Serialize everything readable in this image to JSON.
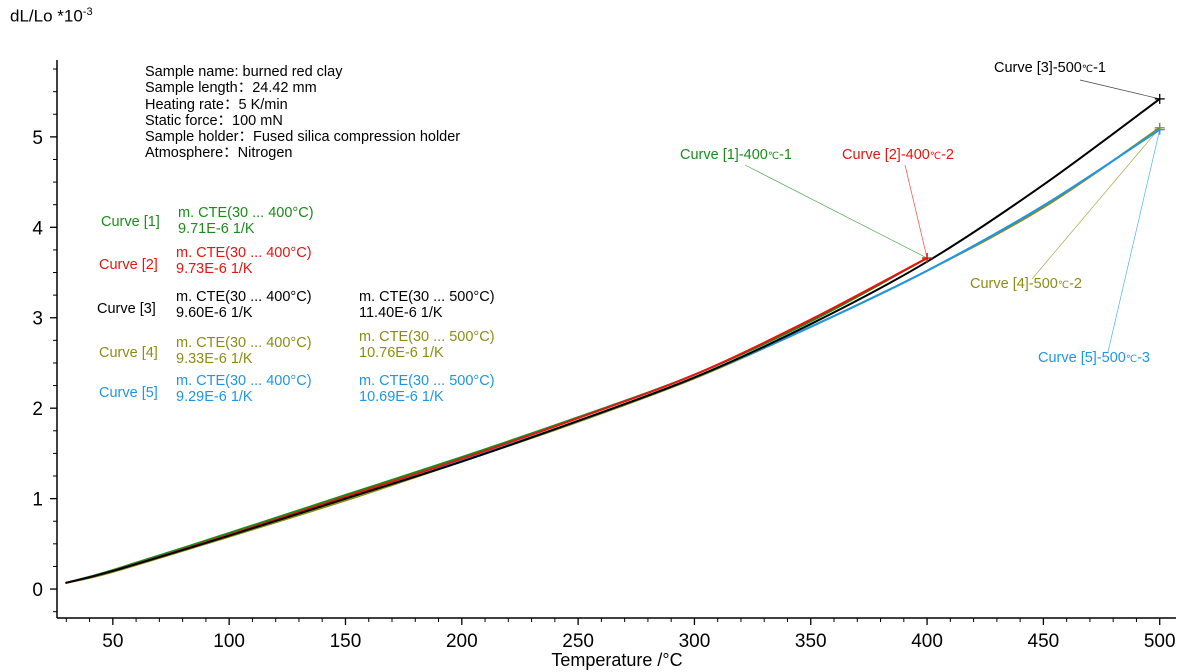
{
  "colors": {
    "curve1": "#1a8c1a",
    "curve2": "#e8140f",
    "curve3": "#000000",
    "curve4": "#8c8c14",
    "curve5": "#1e96e6",
    "axis": "#000000"
  },
  "info": {
    "sample_name": "Sample name: burned red clay",
    "sample_length": "Sample length：24.42 mm",
    "heating_rate": "Heating rate：5 K/min",
    "static_force": "Static force：100 mN",
    "sample_holder": "Sample holder：Fused silica compression holder",
    "atmosphere": "Atmosphere：Nitrogen"
  },
  "cte_table": [
    {
      "name": "Curve [1]",
      "a_label": "m. CTE(30 ... 400°C)",
      "a_value": "9.71E-6 1/K",
      "b_label": "",
      "b_value": ""
    },
    {
      "name": "Curve [2]",
      "a_label": "m. CTE(30 ... 400°C)",
      "a_value": "9.73E-6 1/K",
      "b_label": "",
      "b_value": ""
    },
    {
      "name": "Curve [3]",
      "a_label": "m. CTE(30 ... 400°C)",
      "a_value": "9.60E-6 1/K",
      "b_label": "m. CTE(30 ... 500°C)",
      "b_value": "11.40E-6 1/K"
    },
    {
      "name": "Curve [4]",
      "a_label": "m. CTE(30 ... 400°C)",
      "a_value": "9.33E-6 1/K",
      "b_label": "m. CTE(30 ... 500°C)",
      "b_value": "10.76E-6 1/K"
    },
    {
      "name": "Curve [5]",
      "a_label": "m. CTE(30 ... 400°C)",
      "a_value": "9.29E-6 1/K",
      "b_label": "m. CTE(30 ... 500°C)",
      "b_value": "10.69E-6 1/K"
    }
  ],
  "annotations": [
    {
      "prefix": "Curve [1]-400",
      "unit": "℃",
      "suffix": "-1"
    },
    {
      "prefix": "Curve [2]-400",
      "unit": "℃",
      "suffix": "-2"
    },
    {
      "prefix": "Curve [3]-500",
      "unit": "℃",
      "suffix": "-1"
    },
    {
      "prefix": "Curve [4]-500",
      "unit": "℃",
      "suffix": "-2"
    },
    {
      "prefix": "Curve [5]-500",
      "unit": "℃",
      "suffix": "-3"
    }
  ],
  "chart_data": {
    "type": "line",
    "title": "",
    "xlabel": "Temperature /°C",
    "ylabel_main": "dL/Lo *10",
    "ylabel_exp": "-3",
    "xlim": [
      26,
      507
    ],
    "ylim": [
      -0.32,
      5.85
    ],
    "x_ticks": [
      50,
      100,
      150,
      200,
      250,
      300,
      350,
      400,
      450,
      500
    ],
    "x_tick_labels": [
      "50",
      "100",
      "150",
      "200",
      "250",
      "300",
      "350",
      "400",
      "450",
      "500"
    ],
    "y_ticks": [
      0,
      1,
      2,
      3,
      4,
      5
    ],
    "y_tick_labels": [
      "0",
      "1",
      "2",
      "3",
      "4",
      "5"
    ],
    "grid": false,
    "series": [
      {
        "name": "Curve [1]",
        "color_key": "curve1",
        "x": [
          30,
          50,
          100,
          150,
          200,
          250,
          300,
          350,
          400
        ],
        "y": [
          0.07,
          0.21,
          0.62,
          1.04,
          1.46,
          1.9,
          2.37,
          2.96,
          3.66
        ]
      },
      {
        "name": "Curve [2]",
        "color_key": "curve2",
        "x": [
          30,
          50,
          100,
          150,
          200,
          250,
          300,
          350,
          400
        ],
        "y": [
          0.07,
          0.2,
          0.6,
          1.02,
          1.44,
          1.89,
          2.37,
          2.98,
          3.66
        ]
      },
      {
        "name": "Curve [3]",
        "color_key": "curve3",
        "x": [
          30,
          50,
          100,
          150,
          200,
          250,
          300,
          350,
          400,
          450,
          500
        ],
        "y": [
          0.07,
          0.2,
          0.59,
          1.0,
          1.41,
          1.86,
          2.34,
          2.93,
          3.62,
          4.47,
          5.42
        ]
      },
      {
        "name": "Curve [4]",
        "color_key": "curve4",
        "x": [
          30,
          50,
          100,
          150,
          200,
          250,
          300,
          350,
          400,
          450,
          500
        ],
        "y": [
          0.07,
          0.19,
          0.58,
          0.98,
          1.41,
          1.85,
          2.33,
          2.9,
          3.52,
          4.22,
          5.1
        ]
      },
      {
        "name": "Curve [5]",
        "color_key": "curve5",
        "x": [
          30,
          50,
          100,
          150,
          200,
          250,
          300,
          350,
          400,
          450,
          500
        ],
        "y": [
          0.07,
          0.2,
          0.6,
          1.0,
          1.42,
          1.86,
          2.34,
          2.9,
          3.52,
          4.24,
          5.08
        ]
      }
    ],
    "markers": [
      {
        "x": 400,
        "y": 3.66,
        "series": "Curve [1]"
      },
      {
        "x": 400,
        "y": 3.66,
        "series": "Curve [2]"
      },
      {
        "x": 500,
        "y": 5.42,
        "series": "Curve [3]"
      },
      {
        "x": 500,
        "y": 5.1,
        "series": "Curve [4]"
      },
      {
        "x": 500,
        "y": 5.08,
        "series": "Curve [5]"
      }
    ]
  }
}
